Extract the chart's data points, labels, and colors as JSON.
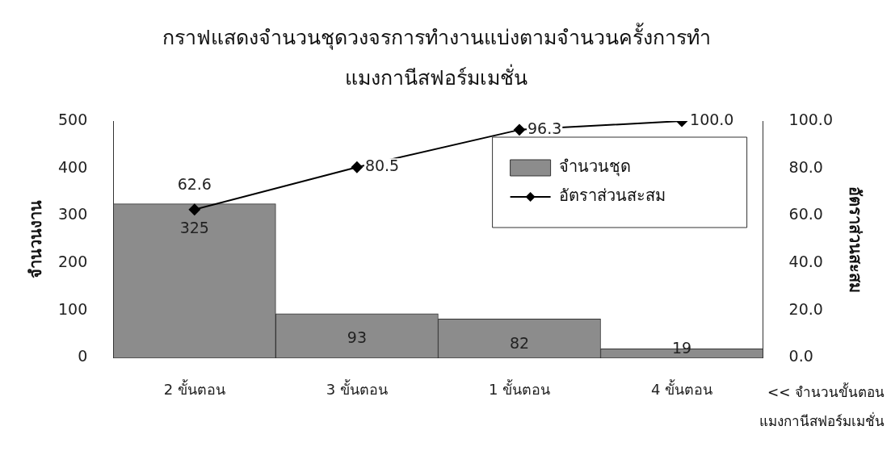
{
  "chart_data": {
    "type": "bar",
    "title": "กราฟแสดงจำนวนชุดวงจรการทำงานแบ่งตามจำนวนครั้งการทำแมงกานีสฟอร์มเมชั่น",
    "xlabel": "<< จำนวนขั้นตอน แมงกานีสฟอร์มเมชั่น",
    "ylabel": "จำนวนงาน",
    "y2label": "อัตราส่วนสะสม",
    "categories": [
      "2 ขั้นตอน",
      "3 ขั้นตอน",
      "1 ขั้นตอน",
      "4 ขั้นตอน"
    ],
    "series": [
      {
        "name": "จำนวนชุด",
        "color": "#8c8c8c",
        "values": [
          325,
          93,
          82,
          19
        ],
        "value_labels": [
          "325",
          "93",
          "82",
          "19"
        ]
      },
      {
        "name": "อัตราส่วนสะสม",
        "type": "line",
        "axis": "y2",
        "color": "#000000",
        "values": [
          62.6,
          80.5,
          96.3,
          100.0
        ],
        "value_labels": [
          "62.6",
          "80.5",
          "96.3",
          "100.0"
        ]
      }
    ],
    "ylim": [
      0,
      500
    ],
    "yticks": [
      0,
      100,
      200,
      300,
      400,
      500
    ],
    "y2lim": [
      0,
      100
    ],
    "y2ticks": [
      {
        "value": 0,
        "label": "0.0"
      },
      {
        "value": 20,
        "label": "20.0"
      },
      {
        "value": 40,
        "label": "40.0"
      },
      {
        "value": 60,
        "label": "60.0"
      },
      {
        "value": 80,
        "label": "80.0"
      },
      {
        "value": 100,
        "label": "100.0"
      }
    ],
    "legend": "top right",
    "marker": "diamond",
    "grid": false
  }
}
